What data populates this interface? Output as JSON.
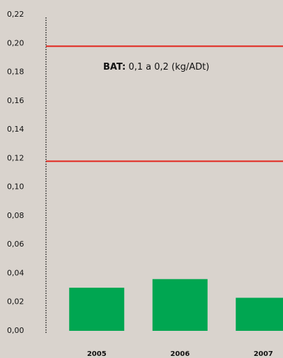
{
  "chart_data": {
    "type": "bar",
    "categories": [
      "2005",
      "2006",
      "2007"
    ],
    "values": [
      0.03,
      0.036,
      0.023
    ],
    "color": "#00a651",
    "ylim": [
      0,
      0.22
    ],
    "yticks": [
      {
        "value": 0,
        "label": "0,00"
      },
      {
        "value": 0.02,
        "label": "0,02"
      },
      {
        "value": 0.04,
        "label": "0,04"
      },
      {
        "value": 0.06,
        "label": "0,06"
      },
      {
        "value": 0.08,
        "label": "0,08"
      },
      {
        "value": 0.1,
        "label": "0,10"
      },
      {
        "value": 0.12,
        "label": "0,12"
      },
      {
        "value": 0.14,
        "label": "0,14"
      },
      {
        "value": 0.16,
        "label": "0,16"
      },
      {
        "value": 0.18,
        "label": "0,18"
      },
      {
        "value": 0.2,
        "label": "0,20"
      },
      {
        "value": 0.22,
        "label": "0,22"
      }
    ],
    "reference_lines": [
      {
        "value": 0.198
      },
      {
        "value": 0.118
      }
    ],
    "reference_color": "#e2231a",
    "annotation": {
      "bold": "BAT:",
      "text": "0,1 a 0,2 (kg/ADt)"
    }
  }
}
